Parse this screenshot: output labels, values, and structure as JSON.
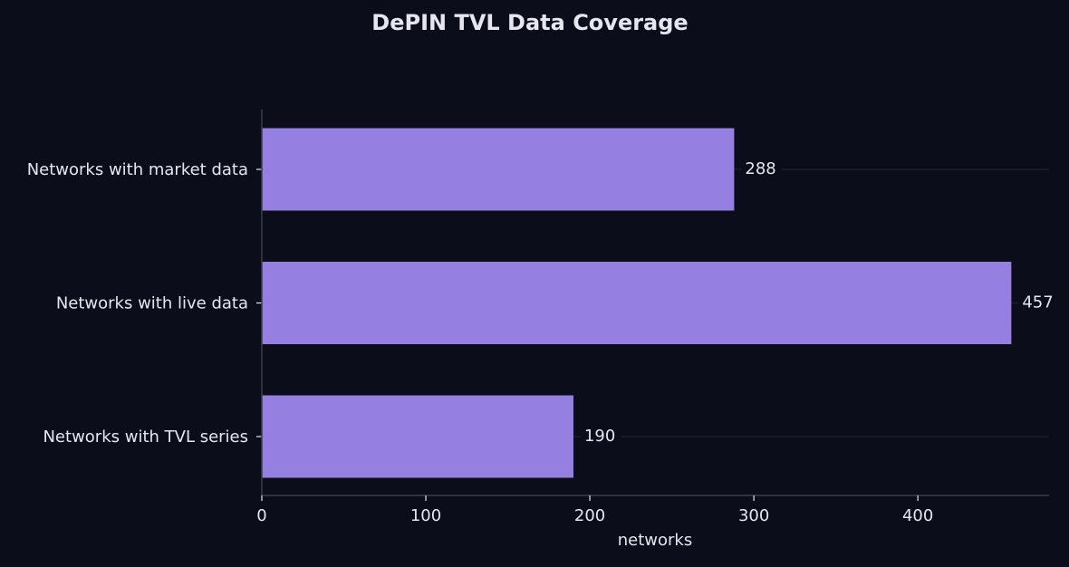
{
  "chart_data": {
    "type": "bar",
    "orientation": "horizontal",
    "title": "DePIN TVL Data Coverage",
    "xlabel": "networks",
    "ylabel": "",
    "categories": [
      "Networks with market data",
      "Networks with live data",
      "Networks with TVL series"
    ],
    "values": [
      288,
      457,
      190
    ],
    "value_labels": [
      "288",
      "457",
      "190"
    ],
    "xlim": [
      0,
      480
    ],
    "xticks": [
      0,
      100,
      200,
      300,
      400
    ],
    "xtick_labels": [
      "0",
      "100",
      "200",
      "300",
      "400"
    ],
    "grid": "horizontal lines at category centers",
    "legend": "none",
    "colors": {
      "background": "#0b0e1a",
      "bar": "#9580e2",
      "text": "#e6e6f0",
      "axis": "#3a3d4d",
      "grid": "#1b1e2c"
    }
  }
}
